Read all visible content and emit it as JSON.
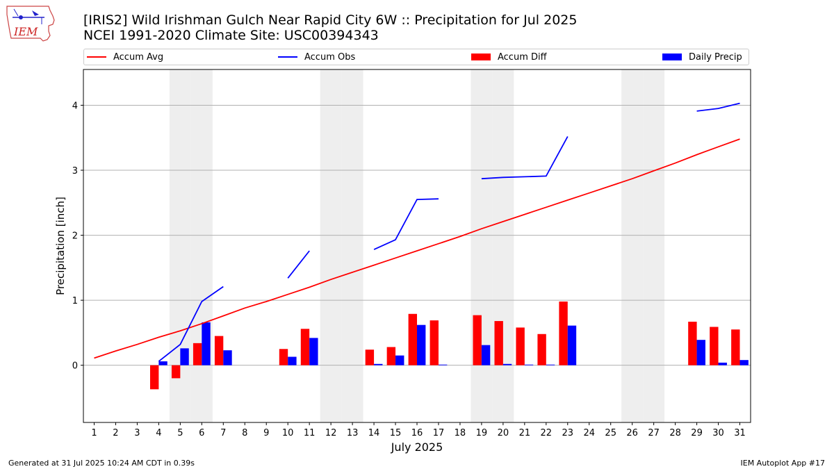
{
  "header": {
    "title_line1": "[IRIS2] Wild Irishman Gulch Near Rapid City 6W :: Precipitation for Jul 2025",
    "title_line2": "NCEI 1991-2020 Climate Site: USC00394343",
    "logo_text": "IEM"
  },
  "footer": {
    "generated": "Generated at 31 Jul 2025 10:24 AM CDT in 0.39s",
    "app": "IEM Autoplot App #17"
  },
  "chart_data": {
    "type": "bar",
    "xlabel": "July 2025",
    "ylabel": "Precipitation [inch]",
    "xlim": [
      0.5,
      31.5
    ],
    "ylim": [
      -0.88,
      4.55
    ],
    "y_ticks": [
      0,
      1,
      2,
      3,
      4
    ],
    "x_ticks": [
      1,
      2,
      3,
      4,
      5,
      6,
      7,
      8,
      9,
      10,
      11,
      12,
      13,
      14,
      15,
      16,
      17,
      18,
      19,
      20,
      21,
      22,
      23,
      24,
      25,
      26,
      27,
      28,
      29,
      30,
      31
    ],
    "grid": "y",
    "legend_position": "top",
    "weekend_days": [
      5,
      6,
      12,
      13,
      19,
      20,
      26,
      27
    ],
    "series": [
      {
        "name": "Accum Avg",
        "kind": "line",
        "color": "#ff0000",
        "x": [
          1,
          2,
          3,
          4,
          5,
          6,
          7,
          8,
          9,
          10,
          11,
          12,
          13,
          14,
          15,
          16,
          17,
          18,
          19,
          20,
          21,
          22,
          23,
          24,
          25,
          26,
          27,
          28,
          29,
          30,
          31
        ],
        "values": [
          0.11,
          0.22,
          0.32,
          0.43,
          0.53,
          0.64,
          0.76,
          0.88,
          0.98,
          1.09,
          1.2,
          1.32,
          1.43,
          1.54,
          1.65,
          1.76,
          1.87,
          1.98,
          2.1,
          2.21,
          2.32,
          2.43,
          2.54,
          2.65,
          2.76,
          2.87,
          2.99,
          3.11,
          3.24,
          3.36,
          3.48
        ]
      },
      {
        "name": "Accum Obs",
        "kind": "line",
        "color": "#0000ff",
        "x": [
          1,
          2,
          3,
          4,
          5,
          6,
          7,
          8,
          9,
          10,
          11,
          12,
          13,
          14,
          15,
          16,
          17,
          18,
          19,
          20,
          21,
          22,
          23,
          24,
          25,
          26,
          27,
          28,
          29,
          30,
          31
        ],
        "values": [
          null,
          null,
          null,
          0.06,
          0.32,
          0.98,
          1.21,
          null,
          null,
          1.34,
          1.76,
          null,
          null,
          1.78,
          1.93,
          2.55,
          2.56,
          null,
          2.87,
          2.89,
          2.9,
          2.91,
          3.52,
          null,
          null,
          null,
          null,
          null,
          3.91,
          3.95,
          4.03
        ]
      },
      {
        "name": "Accum Diff",
        "kind": "bar",
        "color": "#ff0000",
        "x": [
          4,
          5,
          6,
          7,
          10,
          11,
          14,
          15,
          16,
          17,
          19,
          20,
          21,
          22,
          23,
          29,
          30,
          31
        ],
        "values": [
          -0.37,
          -0.2,
          0.34,
          0.45,
          0.25,
          0.56,
          0.24,
          0.28,
          0.79,
          0.69,
          0.77,
          0.68,
          0.58,
          0.48,
          0.98,
          0.67,
          0.59,
          0.55
        ]
      },
      {
        "name": "Daily Precip",
        "kind": "bar",
        "color": "#0000ff",
        "x": [
          4,
          5,
          6,
          7,
          10,
          11,
          14,
          15,
          16,
          17,
          19,
          20,
          21,
          22,
          23,
          29,
          30,
          31
        ],
        "values": [
          0.06,
          0.26,
          0.66,
          0.23,
          0.13,
          0.42,
          0.02,
          0.15,
          0.62,
          0.01,
          0.31,
          0.02,
          0.01,
          0.01,
          0.61,
          0.39,
          0.04,
          0.08
        ]
      }
    ]
  }
}
